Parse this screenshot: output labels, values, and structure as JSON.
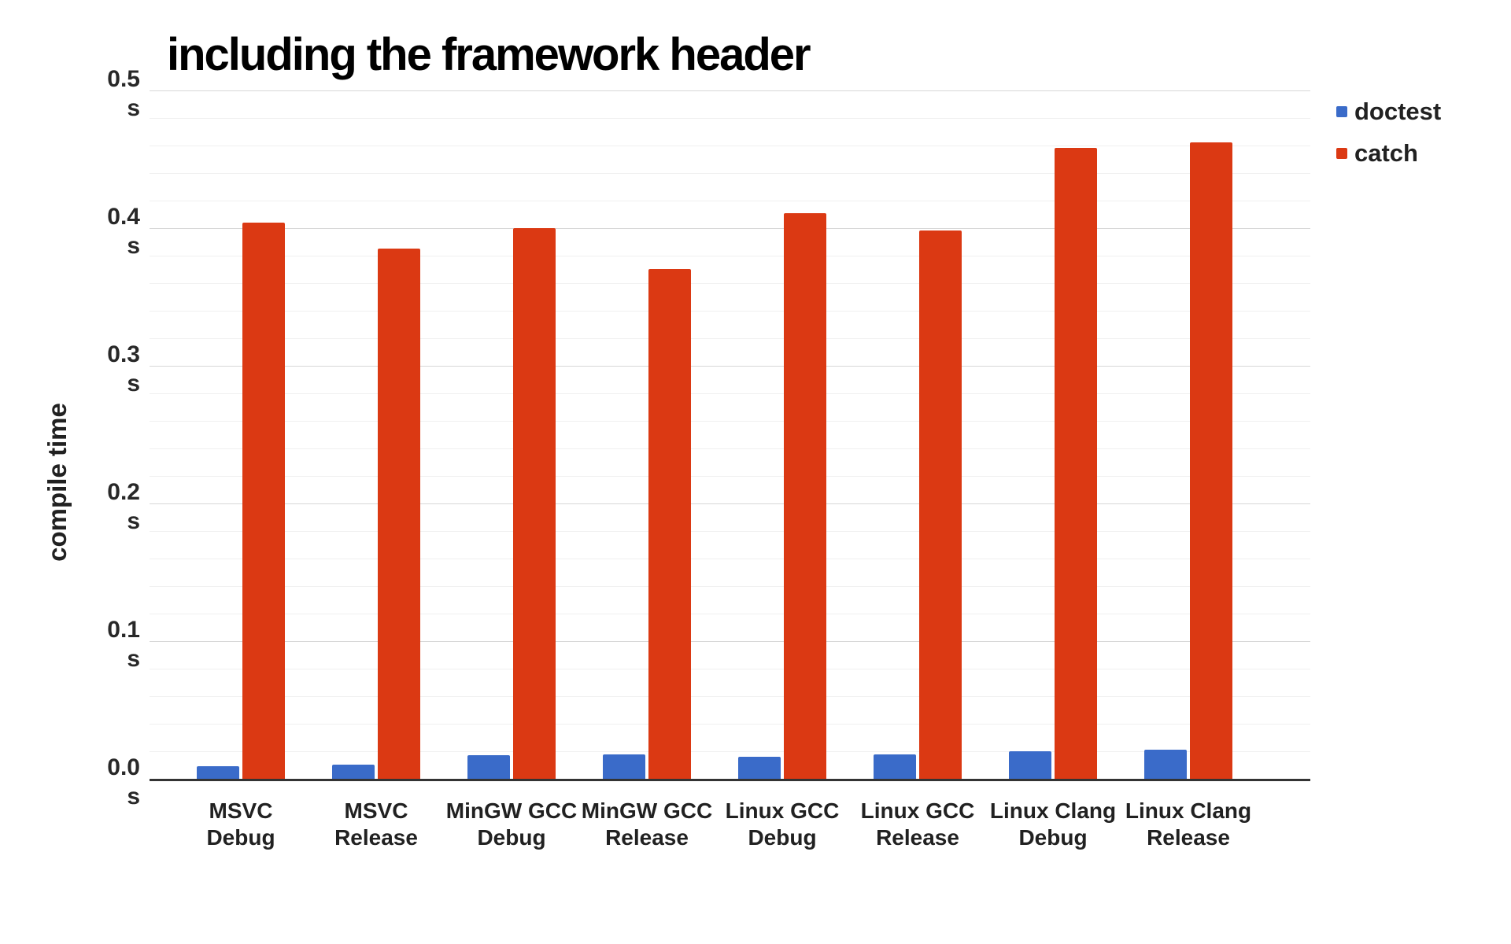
{
  "chart_data": {
    "type": "bar",
    "title": "including the framework header",
    "ylabel": "compile time",
    "y_unit": "s",
    "ylim": [
      0,
      0.5
    ],
    "y_tick_labels": [
      "0.5",
      "0.4",
      "0.3",
      "0.2",
      "0.1",
      "0.0"
    ],
    "grid": {
      "major_interval": 0.1,
      "minor_interval": 0.02,
      "grid_on": true
    },
    "legend_position": "right",
    "categories": [
      [
        "MSVC",
        "Debug"
      ],
      [
        "MSVC",
        "Release"
      ],
      [
        "MinGW GCC",
        "Debug"
      ],
      [
        "MinGW GCC",
        "Release"
      ],
      [
        "Linux GCC",
        "Debug"
      ],
      [
        "Linux GCC",
        "Release"
      ],
      [
        "Linux Clang",
        "Debug"
      ],
      [
        "Linux Clang",
        "Release"
      ]
    ],
    "series": [
      {
        "name": "doctest",
        "color": "#3a6bc9",
        "values": [
          0.009,
          0.01,
          0.017,
          0.018,
          0.016,
          0.018,
          0.02,
          0.021
        ]
      },
      {
        "name": "catch",
        "color": "#db3913",
        "values": [
          0.404,
          0.385,
          0.4,
          0.37,
          0.411,
          0.398,
          0.458,
          0.462
        ]
      }
    ]
  }
}
